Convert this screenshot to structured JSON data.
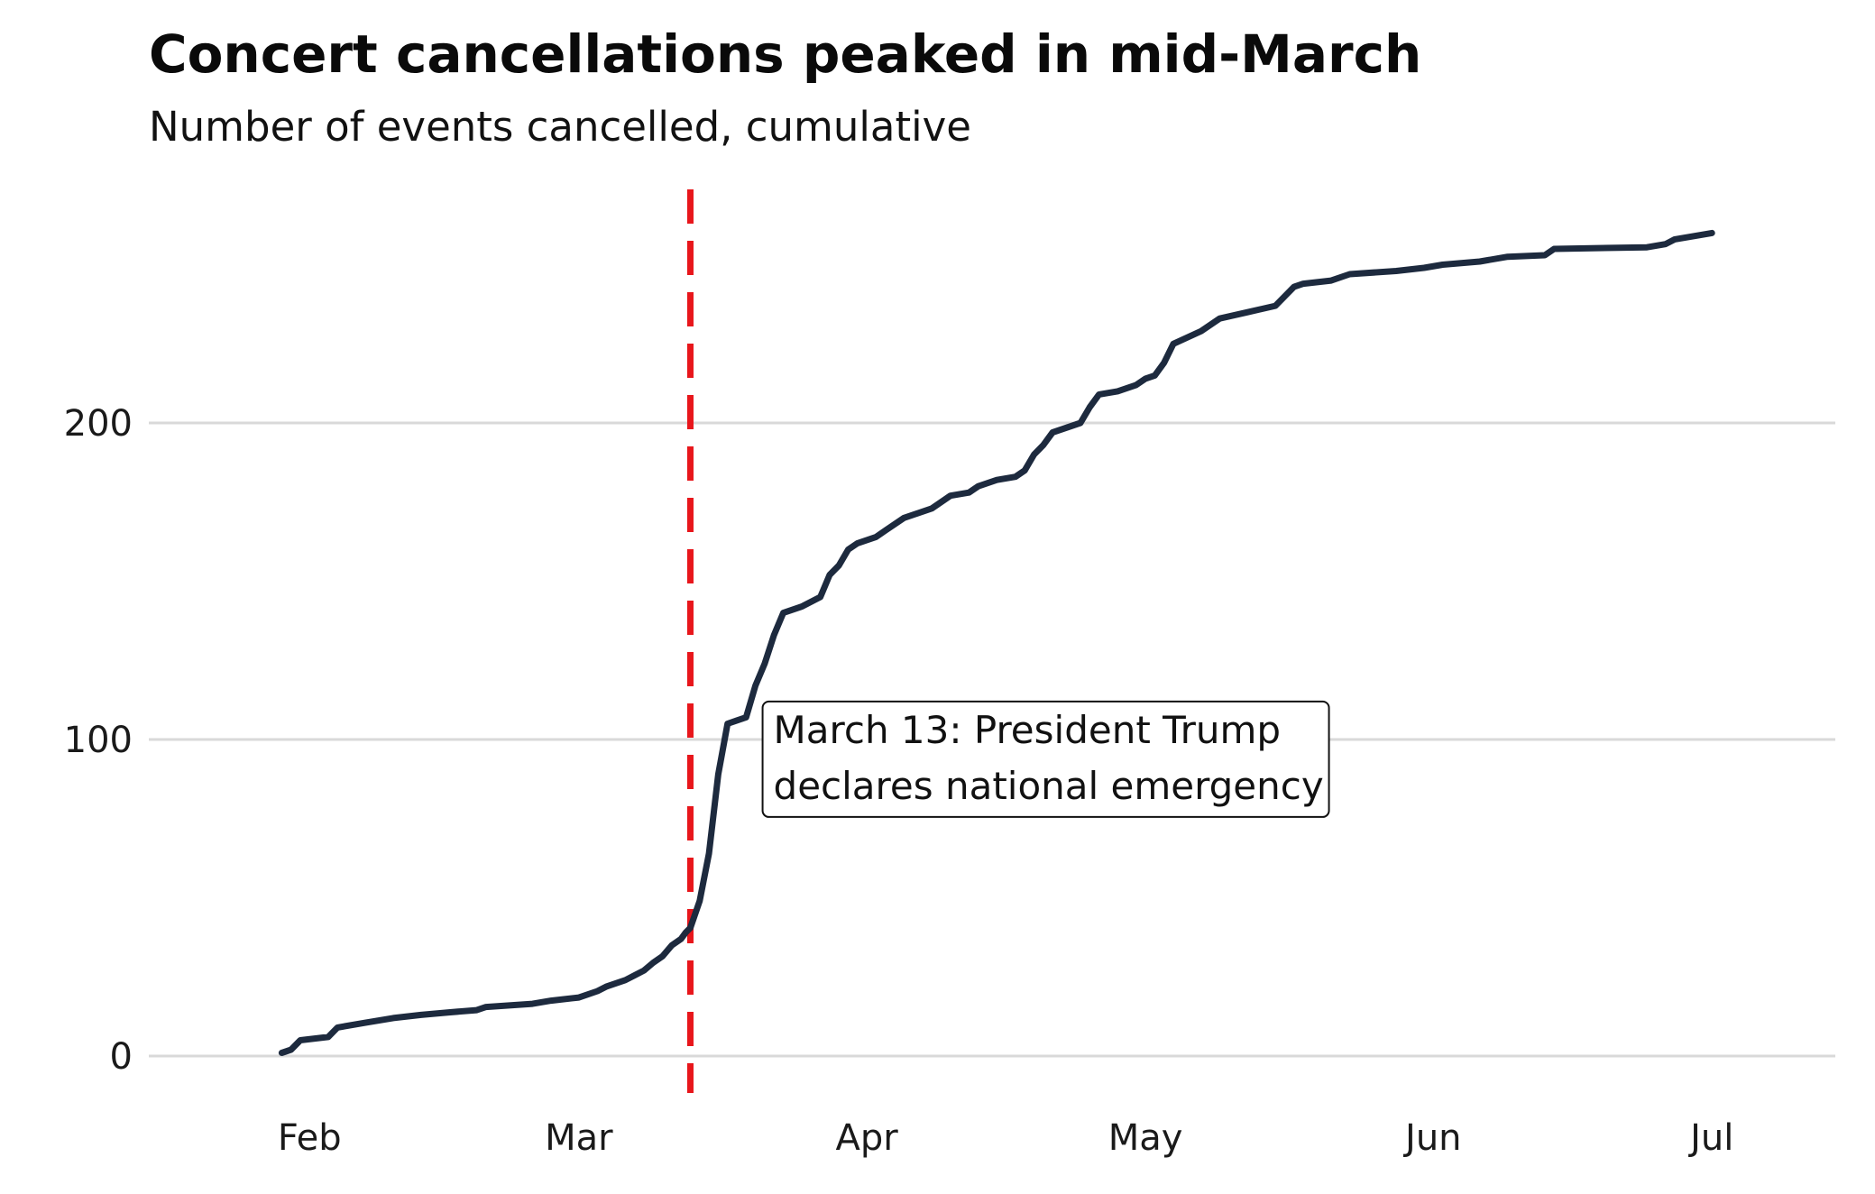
{
  "chart_data": {
    "type": "line",
    "title": "Concert cancellations peaked in mid-March",
    "subtitle": "Number of events cancelled, cumulative",
    "xlabel": "",
    "ylabel": "",
    "x_range": [
      "2020-01-21",
      "2020-07-07"
    ],
    "ylim": [
      -12,
      280
    ],
    "grid": "horizontal",
    "x_ticks": [
      {
        "date": "2020-02-01",
        "label": "Feb"
      },
      {
        "date": "2020-03-01",
        "label": "Mar"
      },
      {
        "date": "2020-04-01",
        "label": "Apr"
      },
      {
        "date": "2020-05-01",
        "label": "May"
      },
      {
        "date": "2020-06-01",
        "label": "Jun"
      },
      {
        "date": "2020-07-01",
        "label": "Jul"
      }
    ],
    "y_ticks": [
      {
        "value": 0,
        "label": "0"
      },
      {
        "value": 100,
        "label": "100"
      },
      {
        "value": 200,
        "label": "200"
      }
    ],
    "colors": {
      "line": "#1d2a3e",
      "reference_line": "#e8161b",
      "grid": "#d9d9d9"
    },
    "reference_line": {
      "date": "2020-03-13",
      "style": "dashed"
    },
    "annotation": {
      "lines": [
        "March 13: President Trump",
        "declares national emergency"
      ],
      "anchor_date": "2020-03-20",
      "anchor_value": 108
    },
    "series": [
      {
        "points": [
          [
            "2020-01-29",
            1
          ],
          [
            "2020-01-30",
            2
          ],
          [
            "2020-01-31",
            5
          ],
          [
            "2020-02-03",
            6
          ],
          [
            "2020-02-04",
            9
          ],
          [
            "2020-02-07",
            10.5
          ],
          [
            "2020-02-10",
            12
          ],
          [
            "2020-02-13",
            13
          ],
          [
            "2020-02-16",
            13.8
          ],
          [
            "2020-02-19",
            14.5
          ],
          [
            "2020-02-20",
            15.5
          ],
          [
            "2020-02-25",
            16.5
          ],
          [
            "2020-02-27",
            17.5
          ],
          [
            "2020-03-01",
            18.5
          ],
          [
            "2020-03-03",
            20.5
          ],
          [
            "2020-03-04",
            22
          ],
          [
            "2020-03-06",
            24
          ],
          [
            "2020-03-07",
            25.5
          ],
          [
            "2020-03-08",
            27
          ],
          [
            "2020-03-09",
            29.5
          ],
          [
            "2020-03-10",
            31.5
          ],
          [
            "2020-03-11",
            35
          ],
          [
            "2020-03-12",
            37
          ],
          [
            "2020-03-12.5",
            39
          ],
          [
            "2020-03-13",
            40.5
          ],
          [
            "2020-03-14",
            49
          ],
          [
            "2020-03-15",
            64
          ],
          [
            "2020-03-16",
            89
          ],
          [
            "2020-03-17",
            105
          ],
          [
            "2020-03-18",
            106
          ],
          [
            "2020-03-19",
            107
          ],
          [
            "2020-03-20",
            117
          ],
          [
            "2020-03-21",
            124
          ],
          [
            "2020-03-22",
            133
          ],
          [
            "2020-03-23",
            140
          ],
          [
            "2020-03-25",
            142
          ],
          [
            "2020-03-27",
            145
          ],
          [
            "2020-03-28",
            152
          ],
          [
            "2020-03-29",
            155
          ],
          [
            "2020-03-30",
            160
          ],
          [
            "2020-03-31",
            162
          ],
          [
            "2020-04-02",
            164
          ],
          [
            "2020-04-03",
            166
          ],
          [
            "2020-04-05",
            170
          ],
          [
            "2020-04-06",
            171
          ],
          [
            "2020-04-08",
            173
          ],
          [
            "2020-04-10",
            177
          ],
          [
            "2020-04-12",
            178
          ],
          [
            "2020-04-13",
            180
          ],
          [
            "2020-04-15",
            182
          ],
          [
            "2020-04-17",
            183
          ],
          [
            "2020-04-18",
            185
          ],
          [
            "2020-04-19",
            190
          ],
          [
            "2020-04-20",
            193
          ],
          [
            "2020-04-21",
            197
          ],
          [
            "2020-04-24",
            200
          ],
          [
            "2020-04-25",
            205
          ],
          [
            "2020-04-26",
            209
          ],
          [
            "2020-04-28",
            210
          ],
          [
            "2020-04-29",
            211
          ],
          [
            "2020-04-30",
            212
          ],
          [
            "2020-05-01",
            214
          ],
          [
            "2020-05-02",
            215
          ],
          [
            "2020-05-03",
            219
          ],
          [
            "2020-05-04",
            225
          ],
          [
            "2020-05-07",
            229
          ],
          [
            "2020-05-09",
            233
          ],
          [
            "2020-05-12",
            235
          ],
          [
            "2020-05-15",
            237
          ],
          [
            "2020-05-17",
            243
          ],
          [
            "2020-05-18",
            244
          ],
          [
            "2020-05-21",
            245
          ],
          [
            "2020-05-23",
            247
          ],
          [
            "2020-05-28",
            248
          ],
          [
            "2020-05-31",
            249
          ],
          [
            "2020-06-02",
            250
          ],
          [
            "2020-06-06",
            251
          ],
          [
            "2020-06-09",
            252.5
          ],
          [
            "2020-06-13",
            253
          ],
          [
            "2020-06-14",
            255
          ],
          [
            "2020-06-24",
            255.5
          ],
          [
            "2020-06-26",
            256.5
          ],
          [
            "2020-06-27",
            258
          ],
          [
            "2020-07-01",
            260
          ]
        ]
      }
    ]
  }
}
